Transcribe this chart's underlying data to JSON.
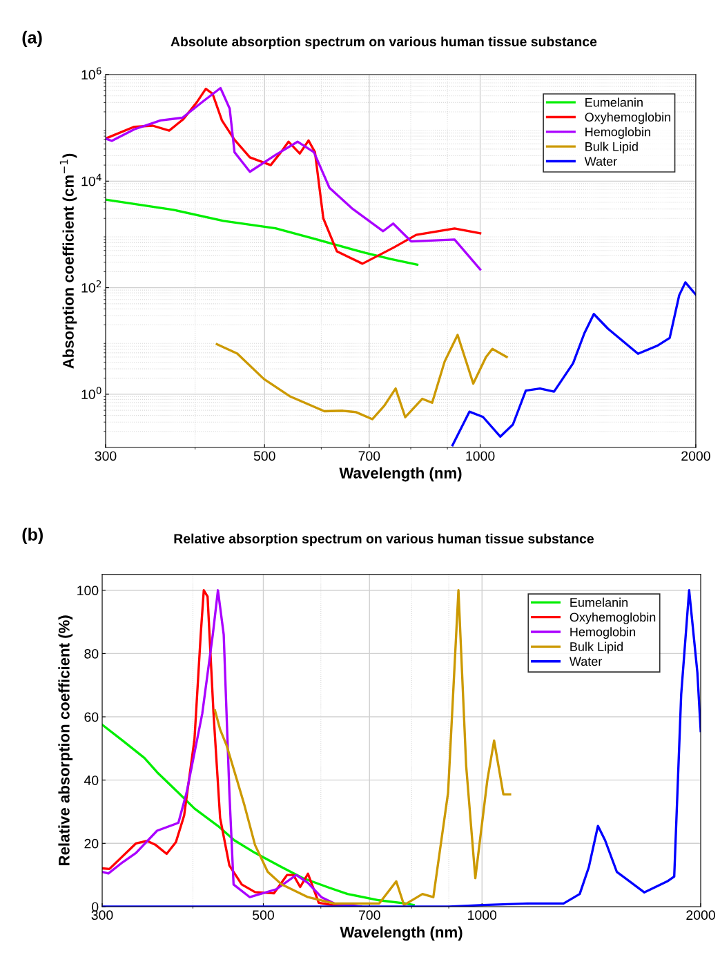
{
  "chart_data": [
    {
      "type": "line",
      "title": "Absolute absorption spectrum on various human tissue substance",
      "xlabel": "Wavelength (nm)",
      "ylabel": "Absorption coefficient (cm$^{−1}$)",
      "annotations": [
        "(a)"
      ],
      "log": "xy",
      "xlim": [
        300,
        2000
      ],
      "xticks": [
        300,
        500,
        700,
        1000,
        2000
      ],
      "ylim": [
        0.1,
        1000000
      ],
      "yticks": [
        {
          "value": 1,
          "label": "10$^{0}$"
        },
        {
          "value": 100,
          "label": "10$^{2}$"
        },
        {
          "value": 10000,
          "label": "10$^{4}$"
        },
        {
          "value": 1000000,
          "label": "10$^{6}$"
        }
      ],
      "grid": true,
      "legend": "top right",
      "series": [
        {
          "name": "Eumelanin",
          "color": "#00ee00",
          "x": [
            300,
            373,
            438,
            518,
            586,
            691,
            750,
            817
          ],
          "values": [
            4500,
            2900,
            1800,
            1300,
            830,
            450,
            345,
            270
          ]
        },
        {
          "name": "Oxyhemoglobin",
          "color": "#ff0000",
          "x": [
            300,
            329,
            349,
            368,
            385,
            402,
            414,
            423,
            436,
            454,
            477,
            510,
            527,
            540,
            560,
            576,
            588,
            604,
            631,
            685,
            756,
            814,
            921,
            1000
          ],
          "values": [
            63000,
            105000,
            110000,
            89000,
            145000,
            300000,
            540000,
            440000,
            138000,
            60000,
            28000,
            20000,
            35000,
            55000,
            33000,
            58000,
            35000,
            2000,
            480,
            282,
            560,
            980,
            1290,
            1050
          ]
        },
        {
          "name": "Hemoglobin",
          "color": "#aa00ff",
          "x": [
            300,
            306,
            329,
            358,
            384,
            411,
            434,
            447,
            454,
            477,
            518,
            556,
            586,
            616,
            662,
            732,
            756,
            801,
            921,
            1000
          ],
          "values": [
            63000,
            57000,
            94000,
            138000,
            155000,
            320000,
            560000,
            230000,
            35000,
            15000,
            31000,
            55000,
            35000,
            7500,
            3100,
            1150,
            1600,
            740,
            800,
            220
          ]
        },
        {
          "name": "Bulk Lipid",
          "color": "#cc9900",
          "x": [
            429,
            458,
            499,
            542,
            606,
            643,
            671,
            707,
            735,
            762,
            786,
            830,
            857,
            892,
            930,
            978,
            1019,
            1040,
            1089
          ],
          "values": [
            8.7,
            5.8,
            1.93,
            0.92,
            0.48,
            0.49,
            0.46,
            0.34,
            0.61,
            1.28,
            0.37,
            0.82,
            0.69,
            4.1,
            13,
            1.58,
            5.0,
            7.1,
            5.0
          ]
        },
        {
          "name": "Water",
          "color": "#0000ff",
          "x": [
            915,
            966,
            1009,
            1067,
            1111,
            1158,
            1212,
            1268,
            1348,
            1398,
            1441,
            1508,
            1661,
            1766,
            1839,
            1896,
            1934,
            2000
          ],
          "values": [
            0.11,
            0.47,
            0.375,
            0.16,
            0.27,
            1.17,
            1.28,
            1.12,
            3.8,
            14,
            32,
            17,
            5.75,
            8.1,
            11.4,
            72,
            126,
            74
          ]
        }
      ]
    },
    {
      "type": "line",
      "title": "Relative absorption spectrum on various human tissue substance",
      "xlabel": "Wavelength (nm)",
      "ylabel": "Relative absorption coefficient (%)",
      "annotations": [
        "(b)"
      ],
      "log": "x",
      "xlim": [
        300,
        2000
      ],
      "xticks": [
        300,
        500,
        700,
        1000,
        2000
      ],
      "ylim": [
        0,
        105
      ],
      "yticks": [
        0,
        20,
        40,
        60,
        80,
        100
      ],
      "grid": true,
      "legend": "top right",
      "series": [
        {
          "name": "Eumelanin",
          "color": "#00ee00",
          "x": [
            300,
            320,
            343,
            357,
            382,
            402,
            433,
            456,
            487,
            530,
            567,
            616,
            653,
            722,
            785,
            805
          ],
          "values": [
            57.5,
            52.5,
            47,
            42.5,
            36,
            31,
            25.5,
            21,
            17,
            12.5,
            9,
            6,
            4,
            2,
            1,
            0.5
          ]
        },
        {
          "name": "Oxyhemoglobin",
          "color": "#ff0000",
          "x": [
            300,
            307,
            334,
            346,
            355,
            368,
            379,
            389,
            402,
            410,
            414,
            419,
            427,
            436,
            449,
            467,
            487,
            517,
            539,
            550,
            562,
            576,
            596,
            626,
            681
          ],
          "values": [
            12.1,
            11.9,
            20,
            20.8,
            19.6,
            16.7,
            20.4,
            28.8,
            53,
            86,
            100,
            98,
            61,
            28,
            13,
            7,
            4.6,
            4.2,
            10,
            10,
            6.2,
            10.4,
            1.2,
            0.4,
            0
          ]
        },
        {
          "name": "Hemoglobin",
          "color": "#aa00ff",
          "x": [
            300,
            306,
            320,
            334,
            357,
            382,
            392,
            412,
            426,
            433,
            441,
            449,
            455,
            479,
            521,
            555,
            576,
            601,
            626,
            681
          ],
          "values": [
            11,
            10.5,
            14,
            17,
            24,
            26.5,
            36,
            61,
            86,
            100,
            86,
            36,
            7,
            3,
            5.5,
            10,
            7.5,
            3,
            1,
            0
          ]
        },
        {
          "name": "Bulk Lipid",
          "color": "#cc9900",
          "x": [
            429,
            436,
            445,
            460,
            471,
            487,
            507,
            530,
            576,
            626,
            681,
            722,
            762,
            781,
            828,
            857,
            898,
            928,
            951,
            979,
            1017,
            1039,
            1070,
            1093
          ],
          "values": [
            62,
            56,
            51,
            40,
            32,
            19.5,
            11,
            7,
            3,
            1,
            1,
            1,
            8,
            0.5,
            4,
            3,
            36,
            100,
            44.5,
            9,
            40,
            52.5,
            35.5,
            35.5
          ]
        },
        {
          "name": "Water",
          "color": "#0000ff",
          "x": [
            300,
            900,
            1004,
            1161,
            1295,
            1363,
            1403,
            1444,
            1477,
            1533,
            1673,
            1799,
            1839,
            1880,
            1928,
            1979,
            2000
          ],
          "values": [
            0,
            0,
            0.5,
            1,
            1,
            4,
            12.5,
            25.5,
            21,
            11,
            4.5,
            8,
            9.5,
            67,
            100,
            74,
            55.5
          ]
        }
      ]
    }
  ]
}
